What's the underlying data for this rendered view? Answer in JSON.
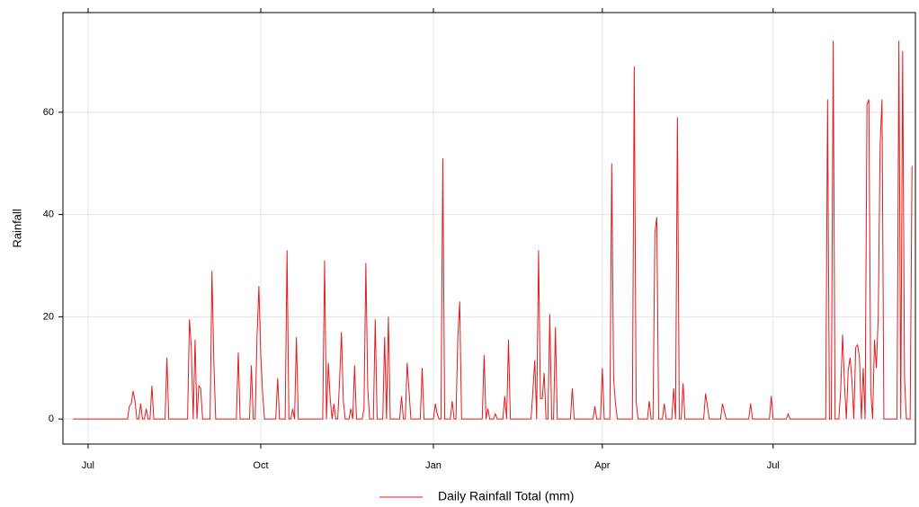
{
  "chart_data": {
    "type": "line",
    "y_label": "Rainfall",
    "series": [
      {
        "name": "Daily Rainfall Total (mm)",
        "color": "#e41a1c",
        "x": [
          -8,
          21,
          22,
          23,
          24,
          25,
          26,
          27,
          28,
          29,
          30,
          31,
          32,
          33,
          34,
          35,
          41,
          42,
          43,
          53,
          54,
          55,
          56,
          57,
          58,
          59,
          60,
          61,
          65,
          66,
          67,
          68,
          79,
          80,
          81,
          86,
          87,
          88,
          89,
          90,
          91,
          92,
          93,
          94,
          100,
          101,
          102,
          105,
          106,
          107,
          108,
          109,
          110,
          111,
          112,
          125,
          126,
          127,
          128,
          129,
          130,
          131,
          132,
          133,
          134,
          135,
          136,
          137,
          139,
          140,
          141,
          142,
          143,
          146,
          147,
          148,
          149,
          150,
          152,
          153,
          154,
          157,
          158,
          159,
          160,
          161,
          166,
          167,
          168,
          169,
          170,
          171,
          172,
          177,
          178,
          179,
          184,
          185,
          186,
          187,
          188,
          189,
          190,
          193,
          194,
          195,
          196,
          197,
          198,
          199,
          210,
          211,
          212,
          213,
          214,
          216,
          217,
          218,
          221,
          222,
          223,
          224,
          225,
          236,
          237,
          238,
          239,
          240,
          241,
          242,
          243,
          244,
          245,
          246,
          247,
          248,
          249,
          250,
          257,
          258,
          259,
          269,
          270,
          271,
          273,
          274,
          275,
          278,
          279,
          280,
          281,
          282,
          290,
          291,
          292,
          293,
          298,
          299,
          300,
          301,
          302,
          303,
          304,
          306,
          307,
          308,
          311,
          312,
          313,
          314,
          315,
          316,
          317,
          318,
          328,
          329,
          330,
          331,
          337,
          338,
          339,
          340,
          352,
          353,
          354,
          363,
          364,
          365,
          372,
          373,
          374,
          393,
          394,
          395,
          396,
          397,
          398,
          400,
          401,
          402,
          403,
          404,
          405,
          406,
          407,
          408,
          409,
          410,
          411,
          412,
          413,
          414,
          415,
          416,
          417,
          418,
          419,
          420,
          421,
          422,
          423,
          424,
          431,
          432,
          433,
          434,
          435,
          436,
          438,
          439
        ],
        "values": [
          0,
          0,
          2.5,
          3,
          5.5,
          3.5,
          0,
          0,
          3,
          0,
          0,
          2,
          0,
          0,
          6.5,
          0,
          0,
          12,
          0,
          0,
          19.5,
          14,
          0,
          15.5,
          0,
          6.5,
          6,
          0,
          0,
          29,
          11,
          0,
          0,
          13,
          0,
          0,
          10.5,
          0,
          0,
          16,
          26,
          12.5,
          5,
          0,
          0,
          8,
          0,
          0,
          33,
          0,
          0,
          2,
          0,
          16,
          0,
          0,
          31,
          0,
          11,
          4,
          0,
          3,
          0,
          0,
          7.5,
          17,
          3.5,
          0,
          0,
          2,
          0,
          10.5,
          0,
          0,
          2,
          30.5,
          6,
          0,
          0,
          19.5,
          0,
          0,
          16,
          0,
          20,
          0,
          0,
          4.5,
          0,
          0,
          11,
          5.5,
          0,
          0,
          10,
          0,
          0,
          3,
          1,
          0,
          0,
          51,
          0,
          0,
          3.5,
          0,
          0,
          16,
          23,
          0,
          0,
          12.5,
          0,
          2,
          0,
          0,
          1,
          0,
          0,
          4.5,
          0,
          15.5,
          0,
          0,
          5.5,
          11.5,
          0,
          33,
          4,
          4,
          9,
          0,
          0,
          20.5,
          0,
          0,
          18,
          0,
          0,
          6,
          0,
          0,
          2.5,
          0,
          0,
          10,
          0,
          0,
          50,
          8,
          3,
          0,
          0,
          69,
          3.5,
          0,
          0,
          3.5,
          0,
          0,
          36.5,
          39.5,
          0,
          0,
          3,
          0,
          0,
          6,
          0,
          59,
          0,
          0,
          7,
          0,
          0,
          5,
          2.5,
          0,
          0,
          3,
          1.5,
          0,
          0,
          3,
          0,
          0,
          4.5,
          0,
          0,
          1,
          0,
          0,
          62.5,
          0,
          0,
          74,
          0,
          0,
          5.5,
          16.5,
          7,
          0,
          9.5,
          12,
          7.5,
          0,
          14,
          14.5,
          12,
          0,
          10,
          0,
          61.5,
          62.5,
          5.5,
          0,
          15.5,
          10,
          20,
          53.5,
          62.5,
          0,
          0,
          74,
          0,
          72,
          8,
          0,
          0,
          49.5
        ]
      }
    ],
    "xlim": [
      -13.4,
      440.8
    ],
    "xticks": [
      {
        "value": 0,
        "label": "Jul"
      },
      {
        "value": 92,
        "label": "Oct"
      },
      {
        "value": 184,
        "label": "Jan"
      },
      {
        "value": 274,
        "label": "Apr"
      },
      {
        "value": 365,
        "label": "Jul"
      }
    ],
    "ylim": [
      -4.9,
      79.5
    ],
    "yticks": [
      0,
      20,
      40,
      60
    ],
    "grid": true,
    "legend": "bottom"
  }
}
